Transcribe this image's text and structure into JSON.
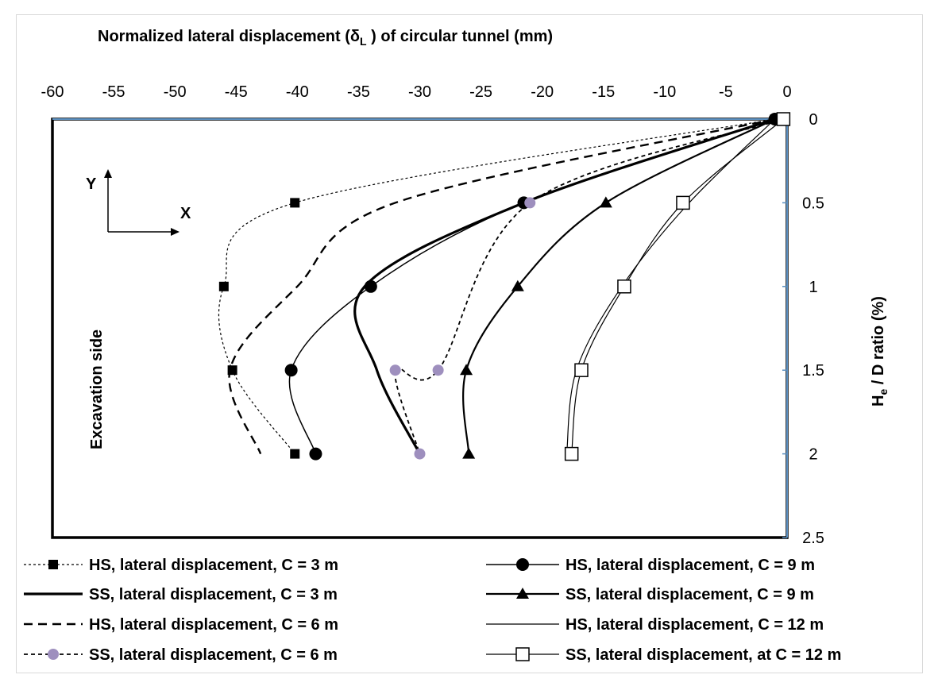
{
  "chart_data": {
    "type": "line",
    "title": "Normalized lateral displacement (δL ) of circular tunnel (mm)",
    "title_parts": {
      "pre": "Normalized lateral displacement (δ",
      "sub": "L",
      "post": " ) of circular tunnel (mm)"
    },
    "ylabel": "He / D ratio (%)",
    "ylabel_parts": {
      "pre": "H",
      "sub": "e",
      "post": " / D ratio (%)"
    },
    "xlim": [
      -60,
      0
    ],
    "ylim": [
      0,
      2.5
    ],
    "x_axis_position": "top",
    "y_axis_position": "right",
    "y_inverted": true,
    "grid": false,
    "xticks": [
      "-60",
      "-55",
      "-50",
      "-45",
      "-40",
      "-35",
      "-30",
      "-25",
      "-20",
      "-15",
      "-10",
      "-5",
      "0"
    ],
    "yticks": [
      "0",
      "0.5",
      "1",
      "1.5",
      "2",
      "2.5"
    ],
    "annotations": {
      "axis_y": "Y",
      "axis_x": "X",
      "side": "Excavation side"
    },
    "legend_position": "bottom",
    "series": [
      {
        "name": "HS, lateral displacement, C = 3 m",
        "color": "#000000",
        "dash": "3,3",
        "width": 1.2,
        "marker": "square",
        "x": [
          -1,
          -40.2,
          -46,
          -45.3,
          -40.2
        ],
        "y": [
          0,
          0.5,
          1,
          1.5,
          2
        ]
      },
      {
        "name": "HS, lateral displacement, C = 9 m",
        "color": "#000000",
        "dash": "",
        "width": 1.5,
        "marker": "circle",
        "x": [
          -1,
          -21.5,
          -34,
          -40.5,
          -38.5
        ],
        "y": [
          0,
          0.5,
          1,
          1.5,
          2
        ]
      },
      {
        "name": "SS, lateral displacement, C = 3 m",
        "color": "#000000",
        "dash": "",
        "width": 3.2,
        "marker": "none",
        "x": [
          -1,
          -21.5,
          -34.5,
          -33.5,
          -30
        ],
        "y": [
          0,
          0.5,
          1,
          1.5,
          2
        ]
      },
      {
        "name": "SS, lateral displacement, C = 9 m",
        "color": "#000000",
        "dash": "",
        "width": 2.2,
        "marker": "triangle",
        "x": [
          -1,
          -14.8,
          -22,
          -26.2,
          -26
        ],
        "y": [
          0,
          0.5,
          1,
          1.5,
          2
        ]
      },
      {
        "name": "HS, lateral displacement, C = 6 m",
        "color": "#000000",
        "dash": "11,7",
        "width": 2.4,
        "marker": "none",
        "x": [
          -1,
          -32,
          -40,
          -45.5,
          -43
        ],
        "y": [
          0,
          0.5,
          1,
          1.5,
          2
        ]
      },
      {
        "name": "HS, lateral displacement, C = 12 m",
        "color": "#000000",
        "dash": "",
        "width": 1.2,
        "marker": "none",
        "x": [
          -1,
          -8,
          -13.5,
          -17.2,
          -18
        ],
        "y": [
          0,
          0.5,
          1,
          1.5,
          2
        ]
      },
      {
        "name": "SS, lateral displacement, C = 6 m",
        "color": "#000000",
        "dash": "5,4",
        "width": 1.8,
        "marker": "circle-lavender",
        "x": [
          -0.3,
          -21,
          -28.5,
          -32,
          -30
        ],
        "y": [
          0,
          0.5,
          1.5,
          1.5,
          2
        ]
      },
      {
        "name": "SS, lateral displacement, at C = 12 m",
        "color": "#000000",
        "dash": "",
        "width": 1.2,
        "marker": "open-square",
        "x": [
          -0.3,
          -8.5,
          -13.3,
          -16.8,
          -17.6
        ],
        "y": [
          0,
          0.5,
          1,
          1.5,
          2
        ]
      }
    ]
  }
}
